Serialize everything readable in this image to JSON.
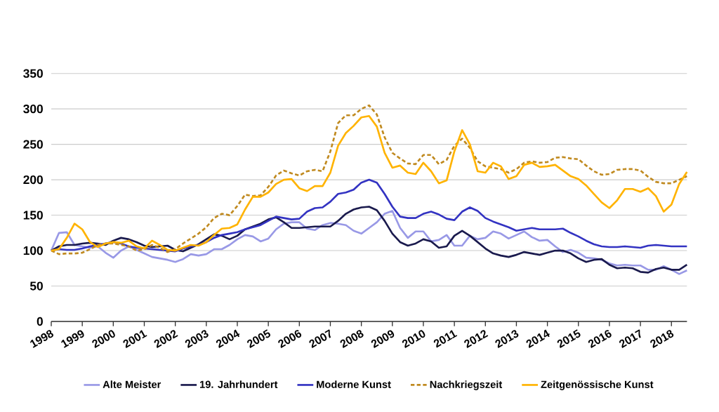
{
  "chart_data": {
    "type": "line",
    "x": [
      1998,
      1998.25,
      1998.5,
      1998.75,
      1999,
      1999.25,
      1999.5,
      1999.75,
      2000,
      2000.25,
      2000.5,
      2000.75,
      2001,
      2001.25,
      2001.5,
      2001.75,
      2002,
      2002.25,
      2002.5,
      2002.75,
      2003,
      2003.25,
      2003.5,
      2003.75,
      2004,
      2004.25,
      2004.5,
      2004.75,
      2005,
      2005.25,
      2005.5,
      2005.75,
      2006,
      2006.25,
      2006.5,
      2006.75,
      2007,
      2007.25,
      2007.5,
      2007.75,
      2008,
      2008.25,
      2008.5,
      2008.75,
      2009,
      2009.25,
      2009.5,
      2009.75,
      2010,
      2010.25,
      2010.5,
      2010.75,
      2011,
      2011.25,
      2011.5,
      2011.75,
      2012,
      2012.25,
      2012.5,
      2012.75,
      2013,
      2013.25,
      2013.5,
      2013.75,
      2014,
      2014.25,
      2014.5,
      2014.75,
      2015,
      2015.25,
      2015.5,
      2015.75,
      2016,
      2016.25,
      2016.5,
      2016.75,
      2017,
      2017.25,
      2017.5,
      2017.75,
      2018,
      2018.25,
      2018.5
    ],
    "series": [
      {
        "name": "Alte Meister",
        "color": "#9999e6",
        "line_style": "solid",
        "values": [
          100,
          125,
          126,
          108,
          106,
          104,
          106,
          97,
          90,
          100,
          106,
          101,
          96,
          91,
          89,
          87,
          84,
          88,
          95,
          93,
          95,
          102,
          102,
          108,
          116,
          122,
          120,
          113,
          117,
          130,
          138,
          140,
          140,
          131,
          129,
          136,
          139,
          138,
          136,
          128,
          124,
          132,
          140,
          152,
          156,
          132,
          118,
          127,
          127,
          113,
          115,
          122,
          107,
          107,
          121,
          116,
          118,
          127,
          124,
          117,
          122,
          127,
          119,
          114,
          115,
          106,
          98,
          101,
          97,
          90,
          89,
          87,
          82,
          79,
          80,
          79,
          79,
          73,
          73,
          78,
          73,
          67,
          72
        ]
      },
      {
        "name": "19. Jahrhundert",
        "color": "#1a1a4d",
        "line_style": "solid",
        "values": [
          100,
          106,
          108,
          108,
          110,
          111,
          110,
          108,
          114,
          118,
          116,
          112,
          107,
          105,
          106,
          107,
          101,
          99,
          104,
          109,
          116,
          123,
          121,
          116,
          121,
          130,
          134,
          138,
          144,
          147,
          140,
          132,
          132,
          133,
          134,
          134,
          134,
          142,
          152,
          158,
          161,
          162,
          157,
          142,
          124,
          112,
          107,
          110,
          116,
          113,
          104,
          106,
          121,
          128,
          121,
          112,
          103,
          96,
          93,
          91,
          94,
          98,
          96,
          94,
          97,
          100,
          100,
          96,
          89,
          84,
          87,
          88,
          80,
          75,
          76,
          75,
          70,
          69,
          74,
          76,
          73,
          73,
          80
        ]
      },
      {
        "name": "Moderne Kunst",
        "color": "#3333c2",
        "line_style": "solid",
        "values": [
          100,
          102,
          101,
          101,
          103,
          106,
          108,
          110,
          112,
          110,
          106,
          104,
          103,
          102,
          101,
          100,
          99,
          103,
          106,
          108,
          112,
          118,
          122,
          124,
          126,
          130,
          133,
          136,
          142,
          148,
          146,
          144,
          145,
          155,
          160,
          161,
          169,
          180,
          182,
          186,
          196,
          200,
          196,
          180,
          162,
          148,
          146,
          146,
          152,
          155,
          151,
          145,
          143,
          155,
          161,
          156,
          146,
          141,
          137,
          133,
          128,
          130,
          132,
          130,
          130,
          130,
          131,
          125,
          120,
          114,
          109,
          106,
          105,
          105,
          106,
          105,
          104,
          107,
          108,
          107,
          106,
          106,
          106
        ]
      },
      {
        "name": "Nachkriegszeit",
        "color": "#c08a20",
        "line_style": "dashed",
        "values": [
          100,
          95,
          96,
          96,
          97,
          102,
          108,
          110,
          110,
          108,
          106,
          100,
          102,
          108,
          104,
          98,
          102,
          110,
          117,
          124,
          133,
          146,
          152,
          150,
          163,
          179,
          177,
          178,
          190,
          206,
          213,
          209,
          206,
          212,
          214,
          212,
          240,
          280,
          291,
          291,
          300,
          305,
          292,
          260,
          238,
          230,
          223,
          222,
          235,
          235,
          222,
          228,
          248,
          258,
          245,
          226,
          219,
          217,
          215,
          210,
          215,
          224,
          226,
          224,
          225,
          231,
          232,
          230,
          229,
          220,
          212,
          207,
          208,
          214,
          215,
          215,
          213,
          204,
          197,
          195,
          195,
          200,
          205
        ]
      },
      {
        "name": "Zeitgenössische Kunst",
        "color": "#ffb300",
        "line_style": "solid",
        "values": [
          100,
          102,
          118,
          138,
          130,
          112,
          105,
          110,
          112,
          111,
          114,
          106,
          103,
          114,
          108,
          101,
          100,
          104,
          108,
          107,
          112,
          122,
          131,
          132,
          137,
          158,
          176,
          176,
          182,
          194,
          200,
          201,
          188,
          184,
          191,
          191,
          210,
          248,
          266,
          276,
          288,
          290,
          275,
          238,
          217,
          220,
          210,
          208,
          224,
          212,
          195,
          199,
          240,
          270,
          250,
          212,
          210,
          224,
          219,
          201,
          205,
          221,
          224,
          218,
          219,
          221,
          213,
          205,
          201,
          192,
          180,
          168,
          160,
          171,
          187,
          187,
          183,
          188,
          177,
          155,
          165,
          194,
          211
        ]
      }
    ],
    "xlim": [
      1998,
      2018.5
    ],
    "ylim": [
      0,
      350
    ],
    "xticks": [
      1998,
      1999,
      2000,
      2001,
      2002,
      2003,
      2004,
      2005,
      2006,
      2007,
      2008,
      2009,
      2010,
      2011,
      2012,
      2013,
      2014,
      2015,
      2016,
      2017,
      2018
    ],
    "yticks": [
      0,
      50,
      100,
      150,
      200,
      250,
      300,
      350
    ],
    "grid": "y",
    "legend": "bottom",
    "marker": "none"
  }
}
